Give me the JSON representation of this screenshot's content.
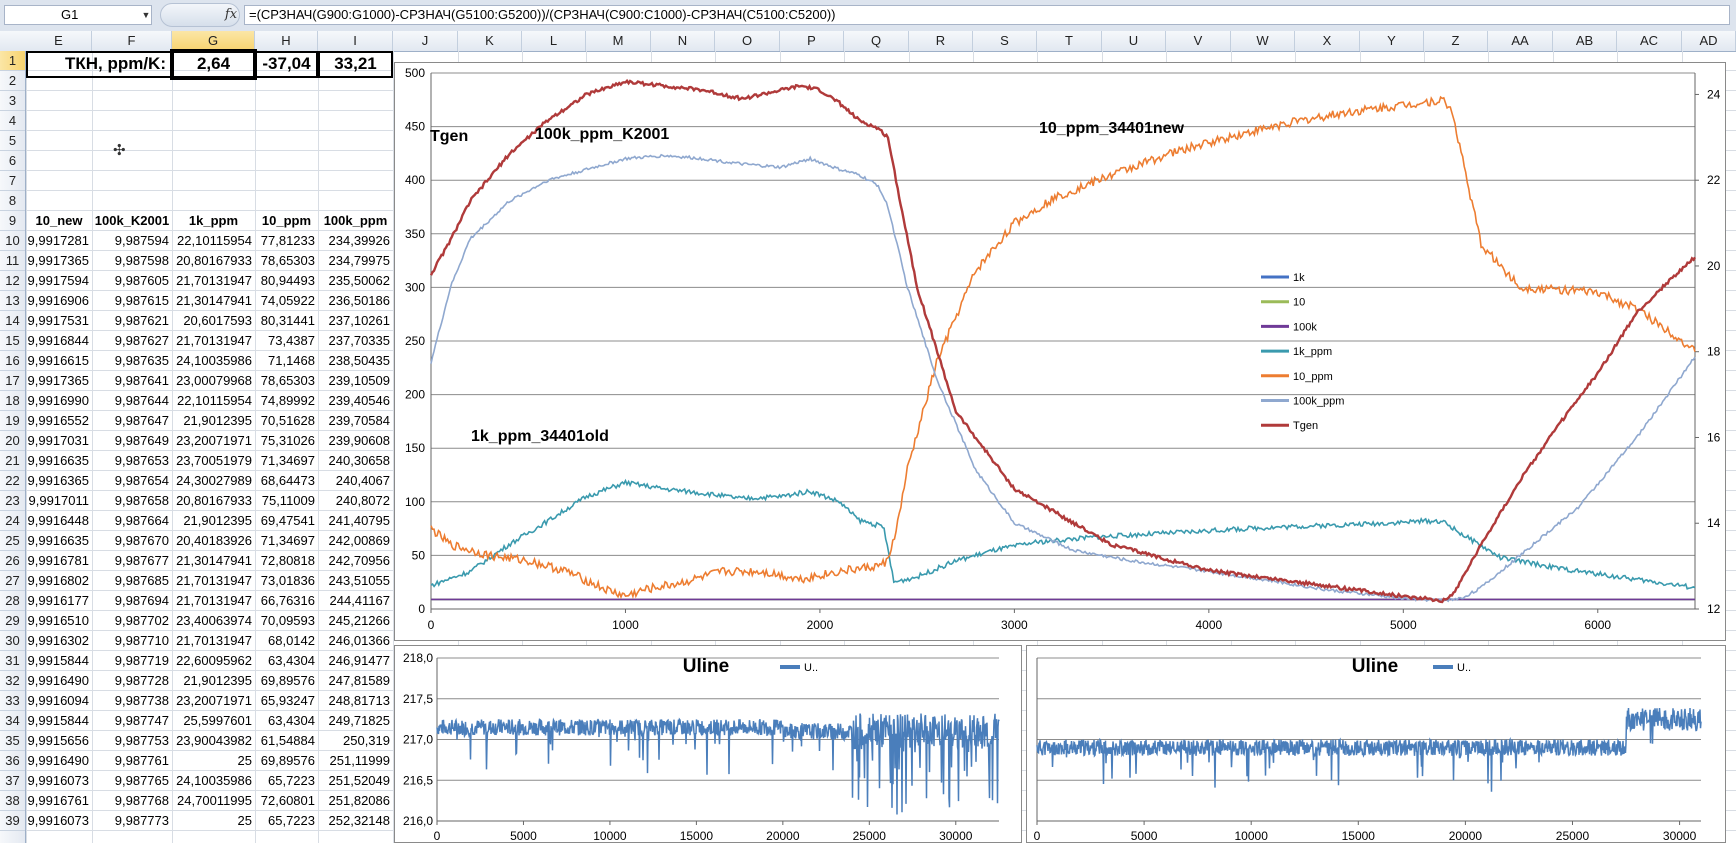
{
  "formula_bar": {
    "name_box": "G1",
    "fx_label": "fx",
    "formula": "=(СРЗНАЧ(G900:G1000)-СРЗНАЧ(G5100:G5200))/(СРЗНАЧ(C900:C1000)-СРЗНАЧ(C5100:C5200))"
  },
  "columns": [
    "E",
    "F",
    "G",
    "H",
    "I",
    "J",
    "K",
    "L",
    "M",
    "N",
    "O",
    "P",
    "Q",
    "R",
    "S",
    "T",
    "U",
    "V",
    "W",
    "X",
    "Y",
    "Z",
    "AA",
    "AB",
    "AC",
    "AD"
  ],
  "selected_column": "G",
  "rows": [
    "1",
    "2",
    "3",
    "4",
    "5",
    "6",
    "7",
    "8",
    "9",
    "10",
    "11",
    "12",
    "13",
    "14",
    "15",
    "16",
    "17",
    "18",
    "19",
    "20",
    "21",
    "22",
    "23",
    "24",
    "25",
    "26",
    "27",
    "28",
    "29",
    "30",
    "31",
    "32",
    "33",
    "34",
    "35",
    "36",
    "37",
    "38",
    "39"
  ],
  "selected_row": "1",
  "row1": {
    "label": "ТКН, ppm/K:",
    "g": "2,64",
    "h": "-37,04",
    "i": "33,21"
  },
  "table": {
    "headers": [
      "10_new",
      "100k_K2001",
      "1k_ppm",
      "10_ppm",
      "100k_ppm"
    ],
    "rows": [
      [
        "9,9917281",
        "9,987594",
        "22,10115954",
        "77,81233",
        "234,39926"
      ],
      [
        "9,9917365",
        "9,987598",
        "20,80167933",
        "78,65303",
        "234,79975"
      ],
      [
        "9,9917594",
        "9,987605",
        "21,70131947",
        "80,94493",
        "235,50062"
      ],
      [
        "9,9916906",
        "9,987615",
        "21,30147941",
        "74,05922",
        "236,50186"
      ],
      [
        "9,9917531",
        "9,987621",
        "20,6017593",
        "80,31441",
        "237,10261"
      ],
      [
        "9,9916844",
        "9,987627",
        "21,70131947",
        "73,4387",
        "237,70335"
      ],
      [
        "9,9916615",
        "9,987635",
        "24,10035986",
        "71,1468",
        "238,50435"
      ],
      [
        "9,9917365",
        "9,987641",
        "23,00079968",
        "78,65303",
        "239,10509"
      ],
      [
        "9,9916990",
        "9,987644",
        "22,10115954",
        "74,89992",
        "239,40546"
      ],
      [
        "9,9916552",
        "9,987647",
        "21,9012395",
        "70,51628",
        "239,70584"
      ],
      [
        "9,9917031",
        "9,987649",
        "23,20071971",
        "75,31026",
        "239,90608"
      ],
      [
        "9,9916635",
        "9,987653",
        "23,70051979",
        "71,34697",
        "240,30658"
      ],
      [
        "9,9916365",
        "9,987654",
        "24,30027989",
        "68,64473",
        "240,4067"
      ],
      [
        "9,9917011",
        "9,987658",
        "20,80167933",
        "75,11009",
        "240,8072"
      ],
      [
        "9,9916448",
        "9,987664",
        "21,9012395",
        "69,47541",
        "241,40795"
      ],
      [
        "9,9916635",
        "9,987670",
        "20,40183926",
        "71,34697",
        "242,00869"
      ],
      [
        "9,9916781",
        "9,987677",
        "21,30147941",
        "72,80818",
        "242,70956"
      ],
      [
        "9,9916802",
        "9,987685",
        "21,70131947",
        "73,01836",
        "243,51055"
      ],
      [
        "9,9916177",
        "9,987694",
        "21,70131947",
        "66,76316",
        "244,41167"
      ],
      [
        "9,9916510",
        "9,987702",
        "23,40063974",
        "70,09593",
        "245,21266"
      ],
      [
        "9,9916302",
        "9,987710",
        "21,70131947",
        "68,0142",
        "246,01366"
      ],
      [
        "9,9915844",
        "9,987719",
        "22,60095962",
        "63,4304",
        "246,91477"
      ],
      [
        "9,9916490",
        "9,987728",
        "21,9012395",
        "69,89576",
        "247,81589"
      ],
      [
        "9,9916094",
        "9,987738",
        "23,20071971",
        "65,93247",
        "248,81713"
      ],
      [
        "9,9915844",
        "9,987747",
        "25,5997601",
        "63,4304",
        "249,71825"
      ],
      [
        "9,9915656",
        "9,987753",
        "23,90043982",
        "61,54884",
        "250,319"
      ],
      [
        "9,9916490",
        "9,987761",
        "25",
        "69,89576",
        "251,11999"
      ],
      [
        "9,9916073",
        "9,987765",
        "24,10035986",
        "65,7223",
        "251,52049"
      ],
      [
        "9,9916761",
        "9,987768",
        "24,70011995",
        "72,60801",
        "251,82086"
      ],
      [
        "9,9916073",
        "9,987773",
        "25",
        "65,7223",
        "252,32148"
      ]
    ]
  },
  "chart_data": [
    {
      "type": "line",
      "xlim": [
        0,
        6500
      ],
      "ylim": [
        0,
        500
      ],
      "y2lim": [
        12,
        24.5
      ],
      "x_ticks": [
        "0",
        "1000",
        "2000",
        "3000",
        "4000",
        "5000",
        "6000"
      ],
      "y_ticks": [
        "0",
        "50",
        "100",
        "150",
        "200",
        "250",
        "300",
        "350",
        "400",
        "450",
        "500"
      ],
      "y2_ticks": [
        "12",
        "14",
        "16",
        "18",
        "20",
        "22",
        "24"
      ],
      "grid": true,
      "legend_position": "right",
      "annotations": [
        "Tgen",
        "100k_ppm_K2001",
        "10_ppm_34401new",
        "1k_ppm_34401old"
      ],
      "series": [
        {
          "name": "1k",
          "color": "#4472c4",
          "axis": "left",
          "x": [
            0,
            6500
          ],
          "y": [
            9,
            9
          ]
        },
        {
          "name": "10",
          "color": "#9bbb59",
          "axis": "left",
          "x": [
            0,
            6500
          ],
          "y": [
            9,
            9
          ]
        },
        {
          "name": "100k",
          "color": "#6f3a97",
          "axis": "left",
          "x": [
            0,
            6500
          ],
          "y": [
            9,
            9
          ]
        },
        {
          "name": "1k_ppm",
          "color": "#3a9aae",
          "axis": "left",
          "x": [
            0,
            200,
            400,
            600,
            800,
            1000,
            1200,
            1400,
            1600,
            1800,
            1950,
            2100,
            2200,
            2300,
            2330,
            2380,
            2500,
            2700,
            2900,
            3100,
            3400,
            3700,
            4000,
            4300,
            4600,
            4900,
            5100,
            5200,
            5300,
            5500,
            5800,
            6100,
            6300,
            6500
          ],
          "y": [
            22,
            35,
            60,
            82,
            105,
            118,
            112,
            108,
            103,
            105,
            110,
            100,
            83,
            78,
            75,
            25,
            30,
            45,
            55,
            62,
            67,
            70,
            73,
            76,
            78,
            80,
            82,
            82,
            70,
            48,
            38,
            30,
            25,
            20
          ]
        },
        {
          "name": "10_ppm",
          "color": "#ed7d31",
          "axis": "left",
          "x": [
            0,
            100,
            300,
            500,
            700,
            900,
            1000,
            1100,
            1300,
            1500,
            1700,
            1900,
            2100,
            2300,
            2350,
            2400,
            2450,
            2600,
            2800,
            3000,
            3200,
            3500,
            3800,
            4100,
            4400,
            4700,
            5000,
            5200,
            5250,
            5400,
            5600,
            5800,
            6000,
            6200,
            6400,
            6500
          ],
          "y": [
            75,
            60,
            50,
            45,
            35,
            18,
            12,
            18,
            25,
            35,
            35,
            28,
            35,
            40,
            45,
            80,
            130,
            230,
            315,
            360,
            383,
            405,
            425,
            440,
            453,
            463,
            470,
            475,
            465,
            340,
            300,
            298,
            295,
            280,
            255,
            240
          ]
        },
        {
          "name": "100k_ppm",
          "color": "#8fa8cf",
          "axis": "left",
          "x": [
            0,
            100,
            200,
            400,
            600,
            800,
            1000,
            1200,
            1400,
            1600,
            1800,
            1950,
            2100,
            2200,
            2300,
            2350,
            2450,
            2600,
            2800,
            3000,
            3300,
            3600,
            4000,
            4300,
            4600,
            4800,
            5000,
            5200,
            5300,
            5400,
            5600,
            5900,
            6200,
            6500
          ],
          "y": [
            230,
            300,
            345,
            380,
            400,
            410,
            420,
            423,
            420,
            415,
            412,
            420,
            410,
            405,
            395,
            375,
            300,
            215,
            130,
            80,
            55,
            45,
            35,
            27,
            18,
            14,
            10,
            8,
            10,
            20,
            50,
            95,
            160,
            235
          ]
        },
        {
          "name": "Tgen",
          "color": "#b03a3a",
          "axis": "right",
          "x": [
            0,
            100,
            200,
            400,
            600,
            800,
            1000,
            1200,
            1400,
            1600,
            1800,
            1900,
            2000,
            2100,
            2200,
            2300,
            2350,
            2400,
            2500,
            2700,
            3000,
            3500,
            4000,
            4500,
            5000,
            5200,
            5250,
            5400,
            5600,
            5800,
            6000,
            6200,
            6400,
            6500
          ],
          "y": [
            19.8,
            20.6,
            21.5,
            22.6,
            23.4,
            24,
            24.3,
            24.2,
            24.1,
            23.9,
            24.1,
            24.2,
            24.1,
            23.8,
            23.4,
            23.2,
            23,
            21.8,
            19.5,
            16.6,
            14.8,
            13.5,
            12.9,
            12.6,
            12.3,
            12.2,
            12.3,
            13.5,
            15,
            16.3,
            17.5,
            18.9,
            19.8,
            20.2
          ]
        }
      ]
    },
    {
      "type": "line",
      "title": "Uline",
      "legend": [
        "U.."
      ],
      "xlim": [
        0,
        32500
      ],
      "ylim": [
        216.0,
        218.0
      ],
      "x_ticks": [
        "0",
        "5000",
        "10000",
        "15000",
        "20000",
        "25000",
        "30000"
      ],
      "y_ticks": [
        "216,0",
        "216,5",
        "217,0",
        "217,5",
        "218,0"
      ],
      "series": [
        {
          "name": "U..",
          "color": "#4a7ebb",
          "baseline": 217.15,
          "noise": 0.12
        }
      ]
    },
    {
      "type": "line",
      "title": "Uline",
      "legend": [
        "U.."
      ],
      "xlim": [
        0,
        31000
      ],
      "ylim": [
        216.0,
        218.0
      ],
      "x_ticks": [
        "0",
        "5000",
        "10000",
        "15000",
        "20000",
        "25000",
        "30000"
      ],
      "series": [
        {
          "name": "U..",
          "color": "#4a7ebb",
          "baseline": 216.9,
          "noise": 0.1
        }
      ]
    }
  ]
}
